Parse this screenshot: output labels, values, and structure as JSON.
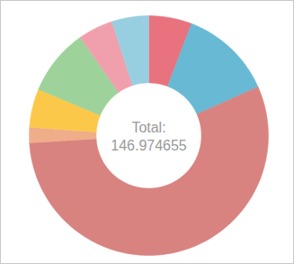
{
  "chart_data": {
    "type": "pie",
    "values": [
      8.57,
      18.37,
      81.86,
      3.06,
      7.63,
      13.19,
      6.94,
      7.35
    ],
    "colors": [
      "#e8737e",
      "#68b9d4",
      "#d88380",
      "#f0ad8a",
      "#fcc84a",
      "#9dd39a",
      "#f0a0ac",
      "#98cfe0"
    ],
    "annotation": "Total:",
    "total": 146.974655
  }
}
